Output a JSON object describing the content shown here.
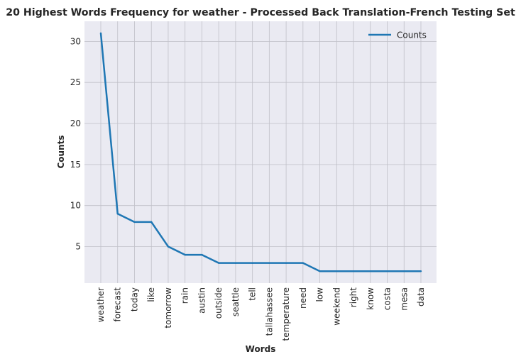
{
  "chart_data": {
    "type": "line",
    "title": "20 Highest Words Frequency for weather - Processed Back Translation-French Testing Set",
    "xlabel": "Words",
    "ylabel": "Counts",
    "categories": [
      "weather",
      "forecast",
      "today",
      "like",
      "tomorrow",
      "rain",
      "austin",
      "outside",
      "seattle",
      "tell",
      "tallahassee",
      "temperature",
      "need",
      "low",
      "weekend",
      "right",
      "know",
      "costa",
      "mesa",
      "data"
    ],
    "series": [
      {
        "name": "Counts",
        "values": [
          31,
          9,
          8,
          8,
          5,
          4,
          4,
          3,
          3,
          3,
          3,
          3,
          3,
          2,
          2,
          2,
          2,
          2,
          2,
          2
        ]
      }
    ],
    "ylim": [
      0.55,
      32.45
    ],
    "yticks": [
      5,
      10,
      15,
      20,
      25,
      30
    ],
    "grid": true,
    "legend": "top-right",
    "colors": {
      "series": "#1f77b4",
      "background": "#eaeaf2",
      "grid": "#c0c0c8"
    }
  }
}
